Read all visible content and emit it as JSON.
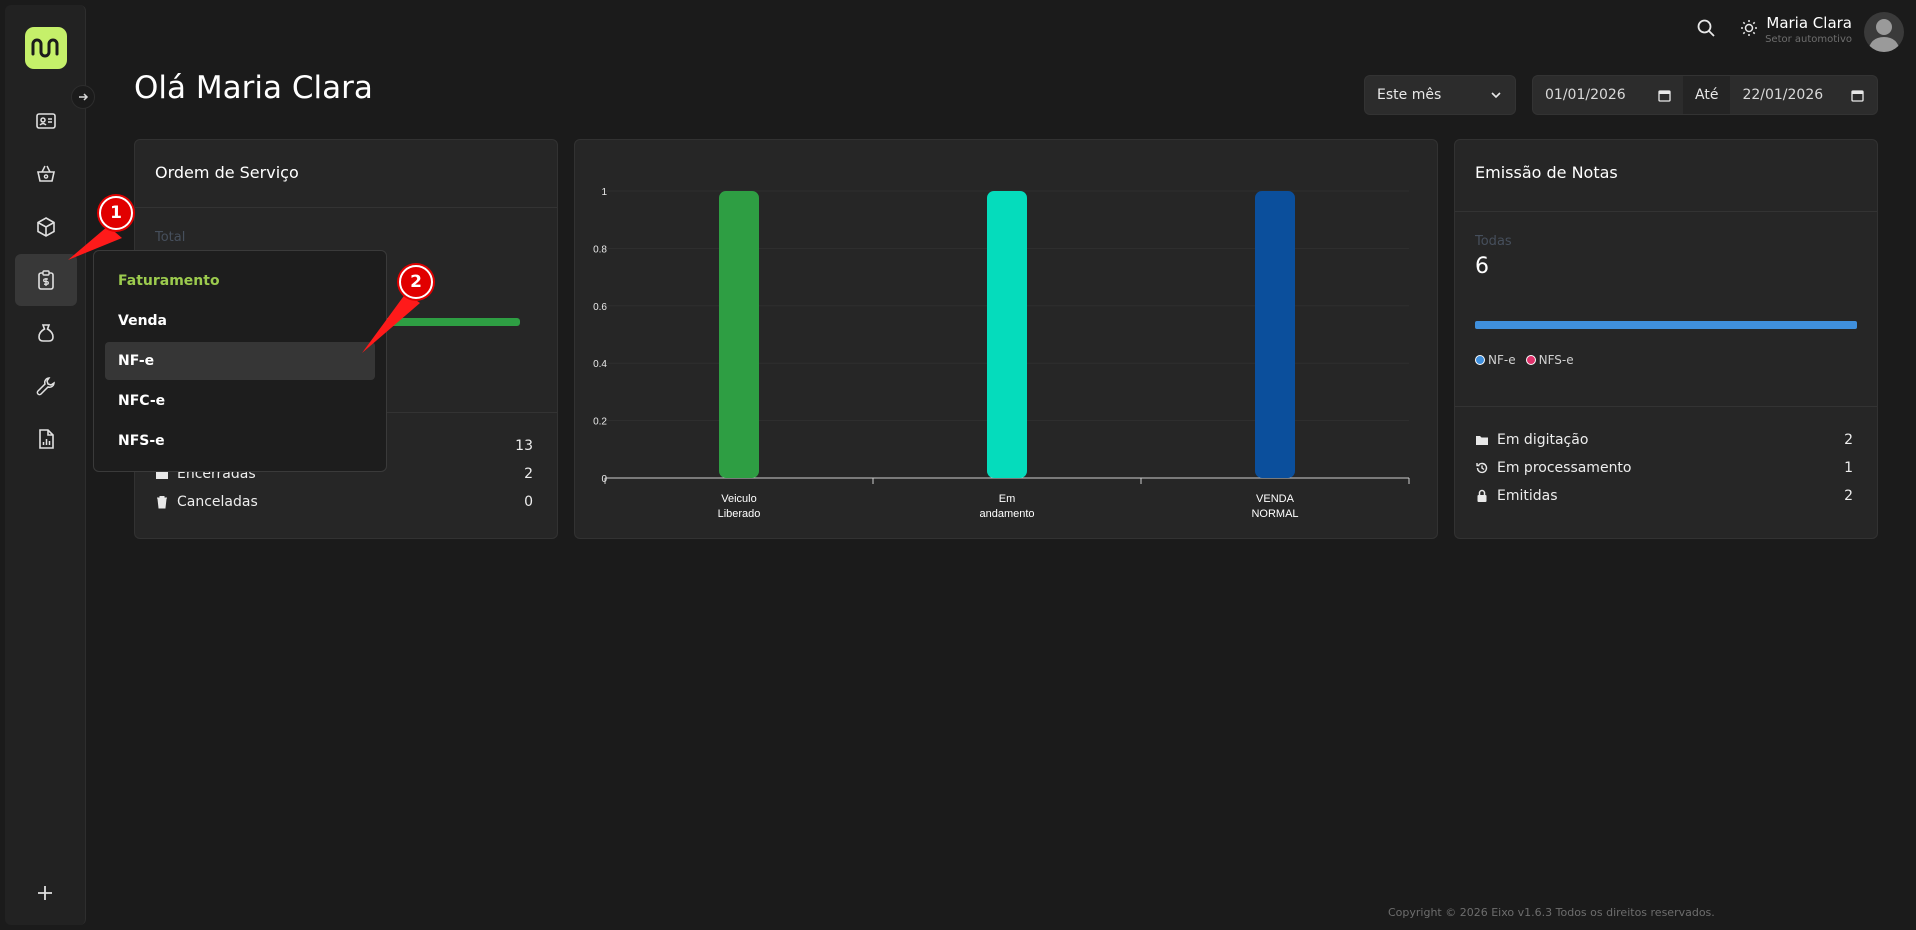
{
  "header": {
    "user_name": "Maria Clara",
    "user_sector": "Setor automotivo",
    "page_title": "Olá Maria Clara",
    "period_select": "Este mês",
    "date_from": "01/01/2026",
    "date_to_label": "Até",
    "date_to": "22/01/2026"
  },
  "sidebar": {
    "items": [
      "id-card-icon",
      "basket-icon",
      "box-icon",
      "billing-icon",
      "money-bag-icon",
      "tools-icon",
      "report-icon"
    ],
    "active_index": 3
  },
  "menu": {
    "header": "Faturamento",
    "items": [
      "Venda",
      "NF-e",
      "NFC-e",
      "NFS-e"
    ],
    "hover_index": 1
  },
  "ordem_servico": {
    "title": "Ordem de Serviço",
    "total_label": "Total",
    "rows": [
      {
        "label": "",
        "value": "13"
      },
      {
        "label": "Encerradas",
        "value": "2"
      },
      {
        "label": "Canceladas",
        "value": "0"
      }
    ],
    "bar_color": "#2e9e43"
  },
  "chart_data": {
    "type": "bar",
    "categories": [
      [
        "Veiculo",
        "Liberado"
      ],
      [
        "Em",
        "andamento"
      ],
      [
        "VENDA",
        "NORMAL"
      ]
    ],
    "values": [
      1,
      1,
      1
    ],
    "colors": [
      "#2e9e43",
      "#05dcbc",
      "#0b4f9c"
    ],
    "yticks": [
      "1",
      "0.8",
      "0.6",
      "0.4",
      "0.2",
      "0"
    ],
    "ylim": [
      0,
      1
    ]
  },
  "emissao": {
    "title": "Emissão de Notas",
    "all_label": "Todas",
    "all_value": "6",
    "legend": [
      {
        "label": "NF-e",
        "color": "#3f8fdc"
      },
      {
        "label": "NFS-e",
        "color": "#e0336c"
      }
    ],
    "rows": [
      {
        "label": "Em digitação",
        "value": "2"
      },
      {
        "label": "Em processamento",
        "value": "1"
      },
      {
        "label": "Emitidas",
        "value": "2"
      }
    ]
  },
  "annotations": [
    "1",
    "2"
  ],
  "footer": "Copyright © 2026 Eixo v1.6.3 Todos os direitos reservados."
}
